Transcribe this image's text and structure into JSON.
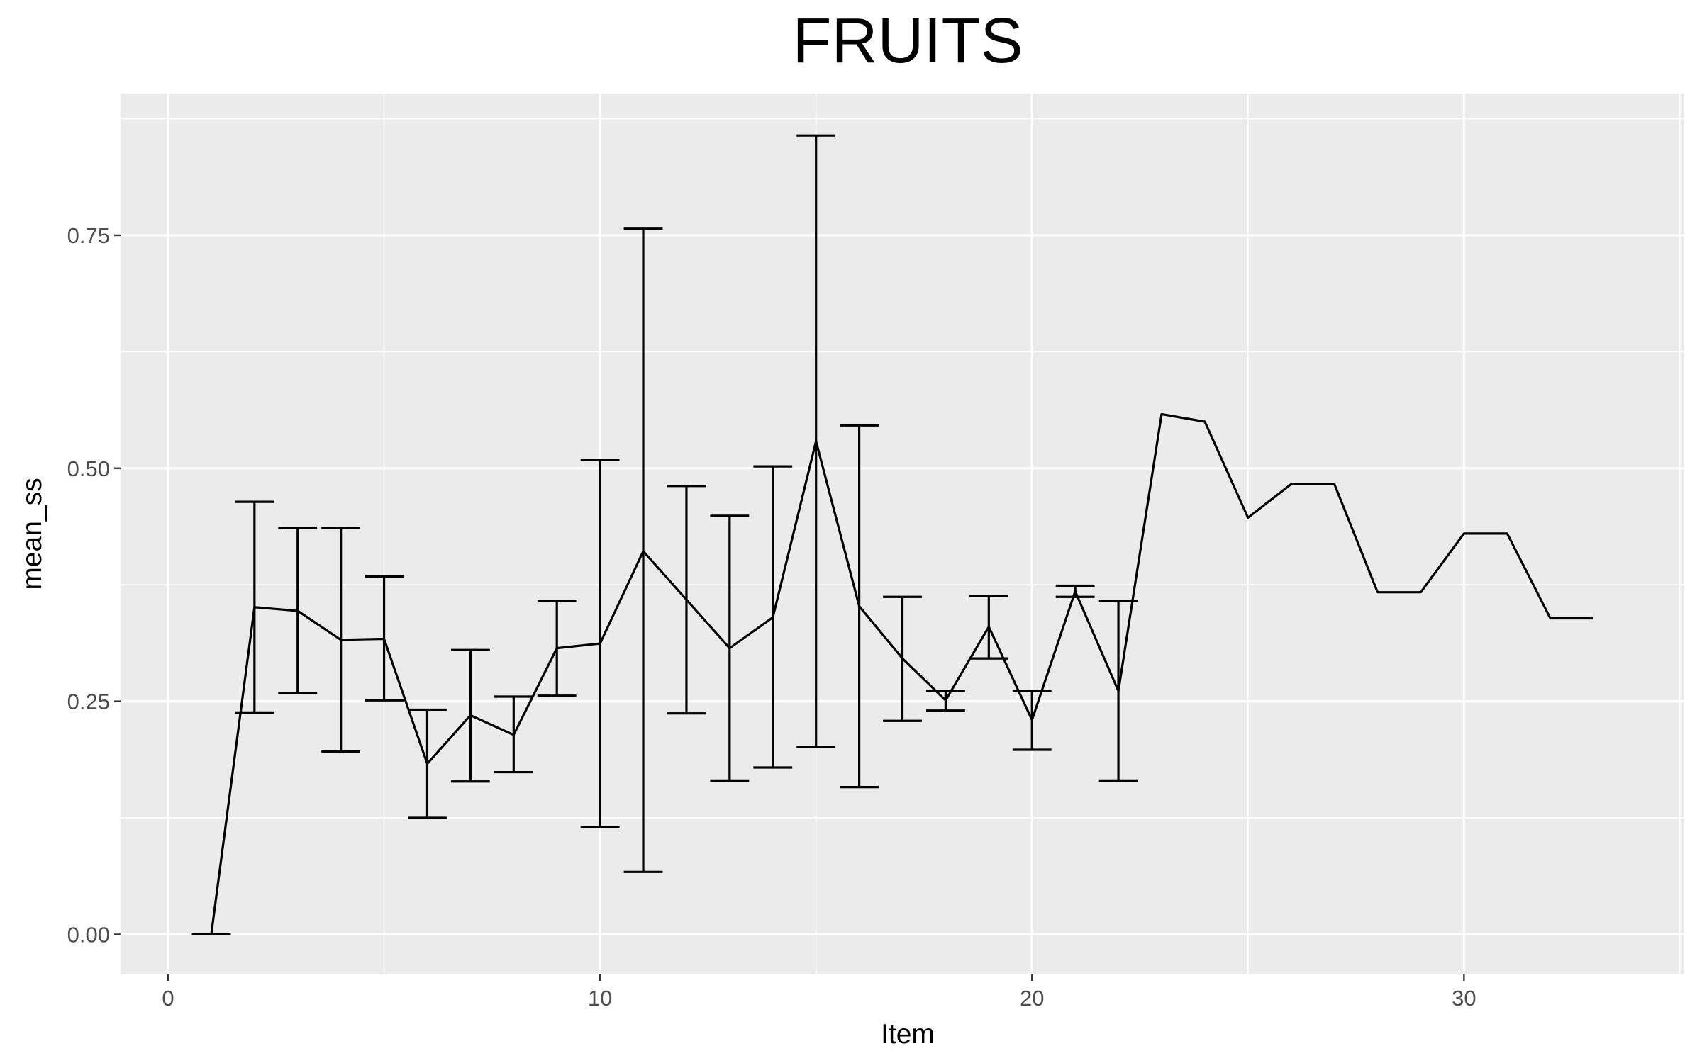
{
  "chart_data": {
    "type": "line",
    "title": "FRUITS",
    "xlabel": "Item",
    "ylabel": "mean_ss",
    "xlim": [
      -1.1,
      35.1
    ],
    "ylim": [
      -0.043,
      0.902
    ],
    "x_ticks": [
      0,
      10,
      20,
      30
    ],
    "x_tick_labels": [
      "0",
      "10",
      "20",
      "30"
    ],
    "y_ticks": [
      0,
      0.25,
      0.5,
      0.75
    ],
    "y_tick_labels": [
      "0.00",
      "0.25",
      "0.50",
      "0.75"
    ],
    "grid": true,
    "legend": "none",
    "series": [
      {
        "x": [
          1,
          2,
          3,
          4,
          5,
          6,
          7,
          8,
          9,
          10,
          11,
          12,
          13,
          14,
          15,
          16,
          17,
          18,
          19,
          20,
          21,
          22,
          23,
          24,
          25,
          26,
          27,
          28,
          29,
          30,
          31,
          32,
          33
        ],
        "y": [
          0.0,
          0.351,
          0.347,
          0.316,
          0.317,
          0.183,
          0.235,
          0.214,
          0.307,
          0.312,
          0.411,
          0.359,
          0.307,
          0.34,
          0.529,
          0.352,
          0.296,
          0.251,
          0.33,
          0.23,
          0.368,
          0.261,
          0.558,
          0.55,
          0.447,
          0.483,
          0.483,
          0.367,
          0.367,
          0.43,
          0.43,
          0.339,
          0.339
        ]
      }
    ],
    "error_bars": [
      {
        "x": 1,
        "low": 0.0,
        "high": 0.0
      },
      {
        "x": 2,
        "low": 0.238,
        "high": 0.464
      },
      {
        "x": 3,
        "low": 0.259,
        "high": 0.436
      },
      {
        "x": 4,
        "low": 0.196,
        "high": 0.436
      },
      {
        "x": 5,
        "low": 0.251,
        "high": 0.384
      },
      {
        "x": 6,
        "low": 0.125,
        "high": 0.241
      },
      {
        "x": 7,
        "low": 0.164,
        "high": 0.305
      },
      {
        "x": 8,
        "low": 0.174,
        "high": 0.255
      },
      {
        "x": 9,
        "low": 0.256,
        "high": 0.358
      },
      {
        "x": 10,
        "low": 0.115,
        "high": 0.509
      },
      {
        "x": 11,
        "low": 0.067,
        "high": 0.757
      },
      {
        "x": 12,
        "low": 0.237,
        "high": 0.481
      },
      {
        "x": 13,
        "low": 0.165,
        "high": 0.449
      },
      {
        "x": 14,
        "low": 0.179,
        "high": 0.502
      },
      {
        "x": 15,
        "low": 0.201,
        "high": 0.857
      },
      {
        "x": 16,
        "low": 0.158,
        "high": 0.546
      },
      {
        "x": 17,
        "low": 0.229,
        "high": 0.362
      },
      {
        "x": 18,
        "low": 0.24,
        "high": 0.261
      },
      {
        "x": 19,
        "low": 0.296,
        "high": 0.363
      },
      {
        "x": 20,
        "low": 0.198,
        "high": 0.261
      },
      {
        "x": 21,
        "low": 0.362,
        "high": 0.374
      },
      {
        "x": 22,
        "low": 0.165,
        "high": 0.358
      }
    ]
  }
}
